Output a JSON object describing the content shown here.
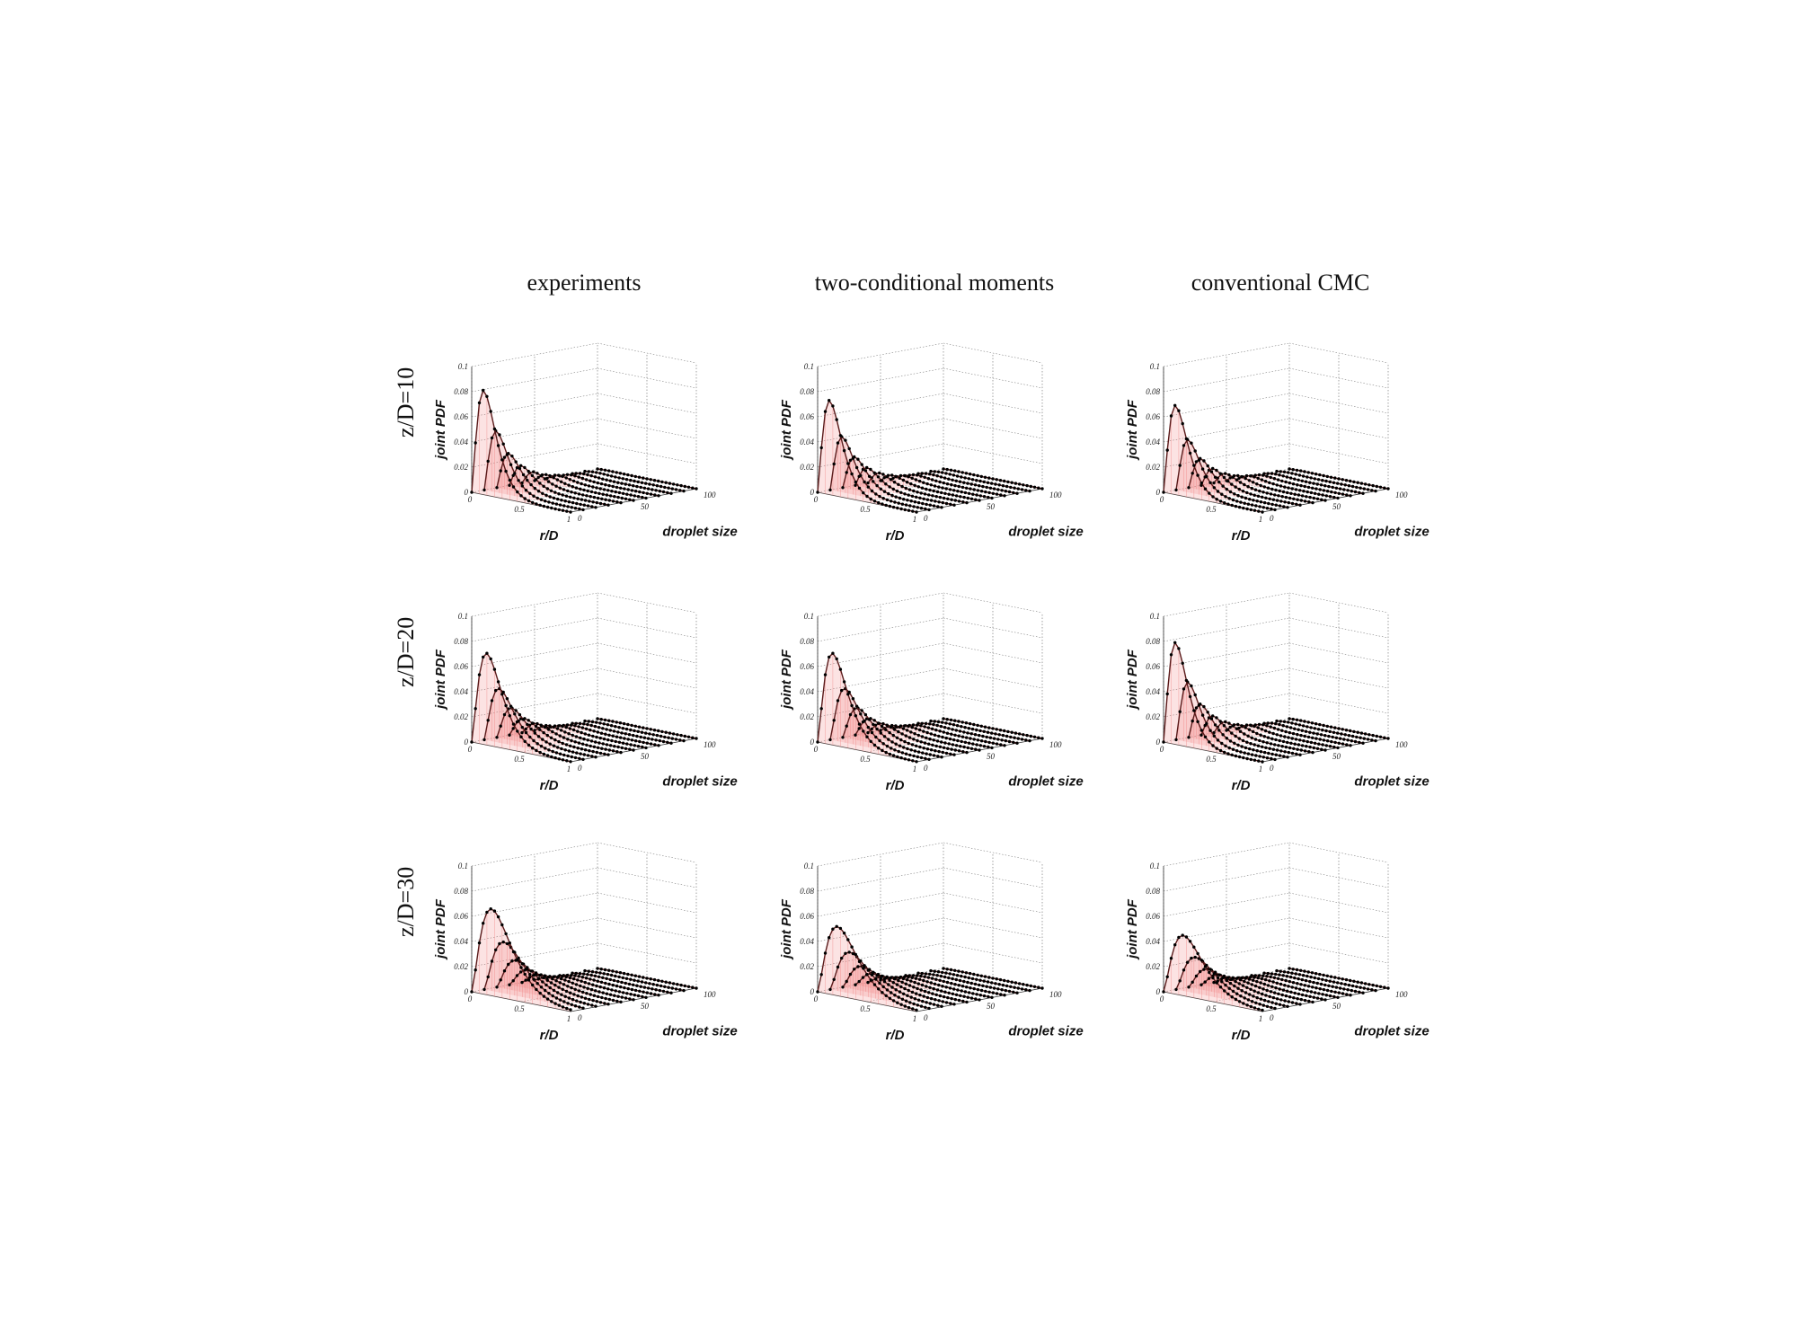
{
  "columns": [
    "experiments",
    "two-conditional moments",
    "conventional CMC"
  ],
  "rows": [
    "z/D=10",
    "z/D=20",
    "z/D=30"
  ],
  "axes": {
    "xlabel": "r/D",
    "ylabel": "droplet size",
    "zlabel": "joint PDF",
    "xticks": [
      "0",
      "0.5",
      "1"
    ],
    "yticks": [
      "0",
      "50",
      "100"
    ],
    "zticks": [
      "0",
      "0.02",
      "0.04",
      "0.06",
      "0.08",
      "0.1"
    ]
  },
  "colors": {
    "curve": "#5a1a1a",
    "marker": "#000000",
    "surface": "#f08080",
    "grid": "#666666"
  },
  "chart_data": [
    {
      "type": "surface3d",
      "column": "experiments",
      "row": "z/D=10",
      "peak": 0.08,
      "peak_r": 0.12,
      "zlim": [
        0,
        0.1
      ],
      "xlim": [
        0,
        1
      ],
      "ylim": [
        0,
        100
      ]
    },
    {
      "type": "surface3d",
      "column": "two-conditional moments",
      "row": "z/D=10",
      "peak": 0.072,
      "peak_r": 0.12,
      "zlim": [
        0,
        0.1
      ],
      "xlim": [
        0,
        1
      ],
      "ylim": [
        0,
        100
      ]
    },
    {
      "type": "surface3d",
      "column": "conventional CMC",
      "row": "z/D=10",
      "peak": 0.068,
      "peak_r": 0.12,
      "zlim": [
        0,
        0.1
      ],
      "xlim": [
        0,
        1
      ],
      "ylim": [
        0,
        100
      ]
    },
    {
      "type": "surface3d",
      "column": "experiments",
      "row": "z/D=20",
      "peak": 0.07,
      "peak_r": 0.15,
      "zlim": [
        0,
        0.1
      ],
      "xlim": [
        0,
        1
      ],
      "ylim": [
        0,
        100
      ]
    },
    {
      "type": "surface3d",
      "column": "two-conditional moments",
      "row": "z/D=20",
      "peak": 0.07,
      "peak_r": 0.15,
      "zlim": [
        0,
        0.1
      ],
      "xlim": [
        0,
        1
      ],
      "ylim": [
        0,
        100
      ]
    },
    {
      "type": "surface3d",
      "column": "conventional CMC",
      "row": "z/D=20",
      "peak": 0.078,
      "peak_r": 0.12,
      "zlim": [
        0,
        0.1
      ],
      "xlim": [
        0,
        1
      ],
      "ylim": [
        0,
        100
      ]
    },
    {
      "type": "surface3d",
      "column": "experiments",
      "row": "z/D=30",
      "peak": 0.066,
      "peak_r": 0.2,
      "zlim": [
        0,
        0.1
      ],
      "xlim": [
        0,
        1
      ],
      "ylim": [
        0,
        100
      ]
    },
    {
      "type": "surface3d",
      "column": "two-conditional moments",
      "row": "z/D=30",
      "peak": 0.052,
      "peak_r": 0.2,
      "zlim": [
        0,
        0.1
      ],
      "xlim": [
        0,
        1
      ],
      "ylim": [
        0,
        100
      ]
    },
    {
      "type": "surface3d",
      "column": "conventional CMC",
      "row": "z/D=30",
      "peak": 0.045,
      "peak_r": 0.2,
      "zlim": [
        0,
        0.1
      ],
      "xlim": [
        0,
        1
      ],
      "ylim": [
        0,
        100
      ]
    }
  ]
}
